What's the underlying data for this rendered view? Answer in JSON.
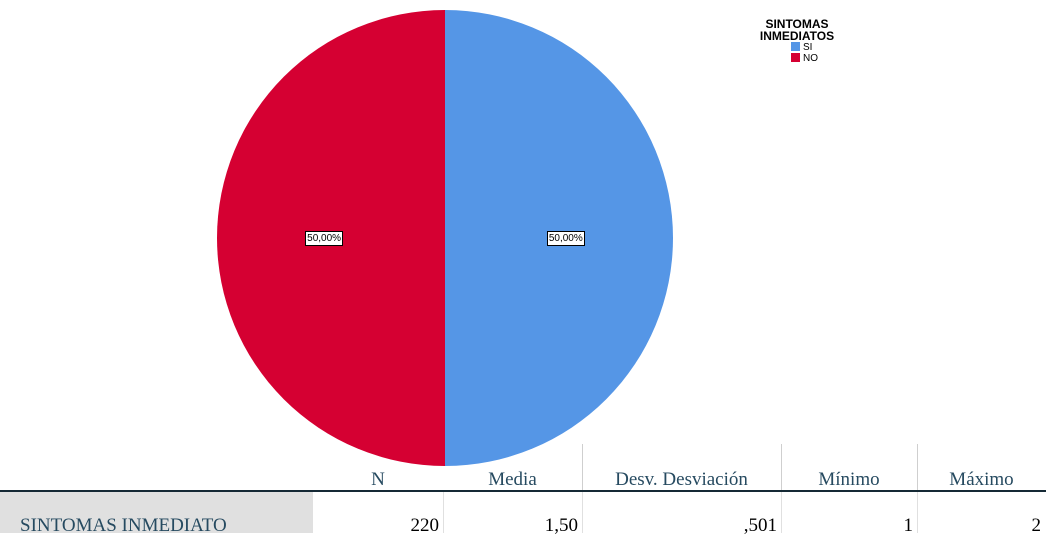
{
  "chart_data": {
    "type": "pie",
    "title": "",
    "legend_title": "SINTOMAS INMEDIATOS",
    "legend_position": "top-right",
    "slices": [
      {
        "label": "SI",
        "value": 50.0,
        "value_label": "50,00%",
        "color": "#5596e6"
      },
      {
        "label": "NO",
        "value": 50.0,
        "value_label": "50,00%",
        "color": "#d50032"
      }
    ]
  },
  "stats_table": {
    "headers": [
      "N",
      "Media",
      "Desv. Desviación",
      "Mínimo",
      "Máximo"
    ],
    "rows": [
      {
        "label": "SINTOMAS INMEDIATO",
        "values": [
          "220",
          "1,50",
          ",501",
          "1",
          "2"
        ]
      }
    ]
  }
}
